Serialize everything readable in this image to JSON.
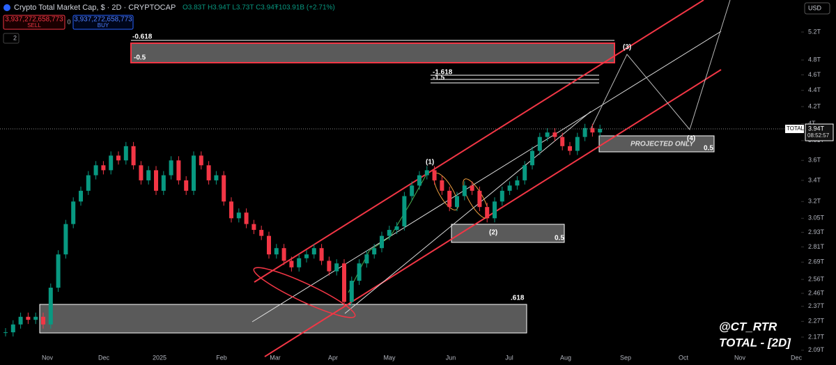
{
  "header": {
    "title": "Crypto Total Market Cap, $ · 2D · CRYPTOCAP",
    "ohlc": "O3.83T H3.94T L3.73T C3.94T",
    "change": "+103.91B (+2.71%)",
    "sell_price": "3,937,272,658,773",
    "sell": "SELL",
    "spread": "0",
    "buy_price": "3,937,272,658,773",
    "buy": "BUY",
    "indicators": "2",
    "currency": "USD"
  },
  "chart_data": {
    "type": "candlestick",
    "log_scale": true,
    "ylim": [
      2.06,
      5.7
    ],
    "yticks": [
      {
        "value": 5.2,
        "label": "5.2T"
      },
      {
        "value": 4.8,
        "label": "4.8T"
      },
      {
        "value": 4.6,
        "label": "4.6T"
      },
      {
        "value": 4.4,
        "label": "4.4T"
      },
      {
        "value": 4.2,
        "label": "4.2T"
      },
      {
        "value": 4,
        "label": "4T"
      },
      {
        "value": 3.81,
        "label": "3.81T"
      },
      {
        "value": 3.6,
        "label": "3.6T"
      },
      {
        "value": 3.4,
        "label": "3.4T"
      },
      {
        "value": 3.2,
        "label": "3.2T"
      },
      {
        "value": 3.05,
        "label": "3.05T"
      },
      {
        "value": 2.93,
        "label": "2.93T"
      },
      {
        "value": 2.81,
        "label": "2.81T"
      },
      {
        "value": 2.69,
        "label": "2.69T"
      },
      {
        "value": 2.56,
        "label": "2.56T"
      },
      {
        "value": 2.46,
        "label": "2.46T"
      },
      {
        "value": 2.37,
        "label": "2.37T"
      },
      {
        "value": 2.27,
        "label": "2.27T"
      },
      {
        "value": 2.17,
        "label": "2.17T"
      },
      {
        "value": 2.09,
        "label": "2.09T"
      }
    ],
    "time_labels": [
      "Nov",
      "Dec",
      "2025",
      "Feb",
      "Mar",
      "Apr",
      "May",
      "Jun",
      "Jul",
      "Aug",
      "Sep",
      "Oct",
      "Nov",
      "Dec"
    ],
    "up_color": "#089981",
    "down_color": "#f23645",
    "closes": [
      2.2,
      2.25,
      2.3,
      2.28,
      2.3,
      2.25,
      2.5,
      2.75,
      3.0,
      3.2,
      3.3,
      3.45,
      3.55,
      3.5,
      3.65,
      3.6,
      3.75,
      3.55,
      3.4,
      3.5,
      3.3,
      3.45,
      3.6,
      3.4,
      3.3,
      3.65,
      3.55,
      3.4,
      3.45,
      3.2,
      3.05,
      3.1,
      3.0,
      2.95,
      2.9,
      2.75,
      2.8,
      2.7,
      2.65,
      2.72,
      2.75,
      2.8,
      2.7,
      2.62,
      2.68,
      2.4,
      2.55,
      2.68,
      2.75,
      2.8,
      2.9,
      2.95,
      2.98,
      3.25,
      3.35,
      3.45,
      3.5,
      3.4,
      3.3,
      3.15,
      3.25,
      3.35,
      3.3,
      3.15,
      3.05,
      3.2,
      3.3,
      3.35,
      3.4,
      3.55,
      3.7,
      3.85,
      3.9,
      3.85,
      3.75,
      3.7,
      3.85,
      3.95,
      3.9,
      3.94
    ],
    "price_tag": {
      "symbol": "TOTAL",
      "price": "3.94T",
      "countdown": "08:52:57"
    }
  },
  "annotations": {
    "fib_top_a": "-0.618",
    "fib_top_b": "-0.5",
    "fib_mid_a": "-1.618",
    "fib_mid_b": "-1.5",
    "wave1": "(1)",
    "wave2": "(2)",
    "wave3": "(3)",
    "wave4": "(4)",
    "projected": "PROJECTED ONLY",
    "projected_level": "0.5",
    "mid_level": "0.5",
    "bottom_level": ".618"
  },
  "watermark": {
    "handle": "@CT_RTR",
    "subtitle": "TOTAL - [2D]"
  }
}
